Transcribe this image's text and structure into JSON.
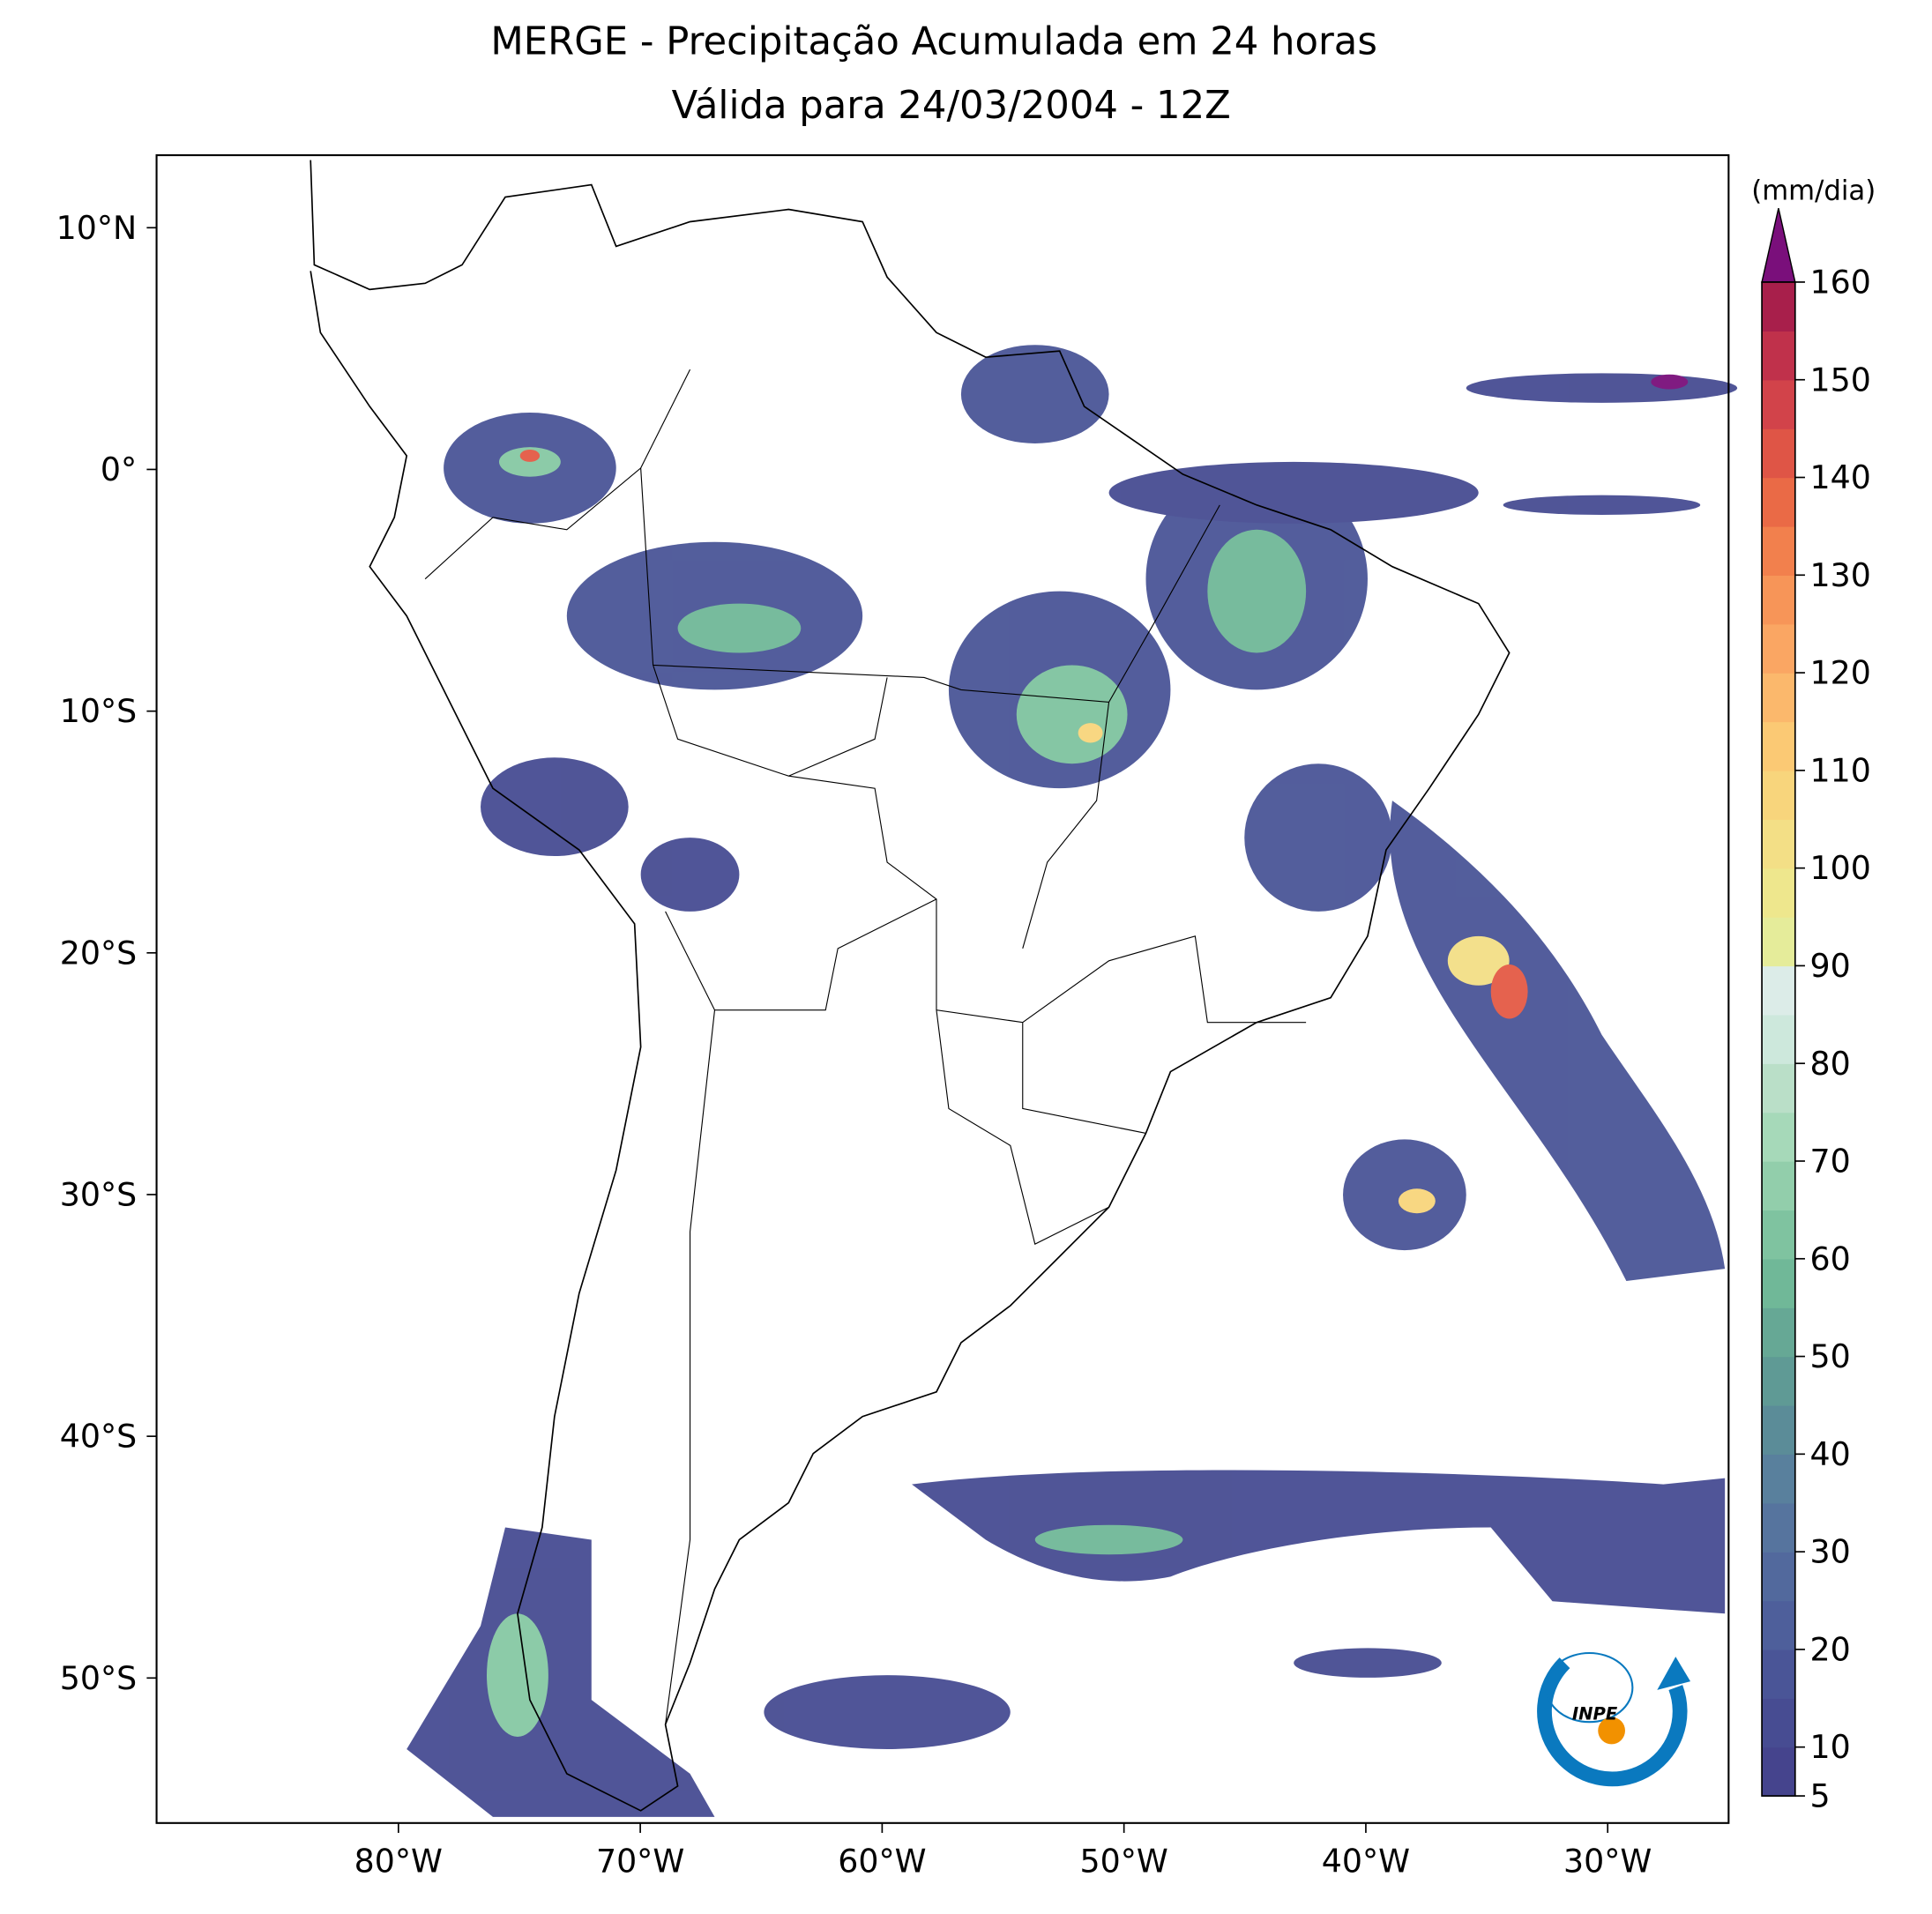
{
  "chart_data": {
    "type": "map",
    "title": [
      "MERGE - Precipitação Acumulada em 24 horas",
      "Válida para 24/03/2004 - 12Z"
    ],
    "xlim": [
      -90,
      -25
    ],
    "ylim": [
      -56,
      13
    ],
    "xticks": [
      {
        "value": -80,
        "label": "80°W"
      },
      {
        "value": -70,
        "label": "70°W"
      },
      {
        "value": -60,
        "label": "60°W"
      },
      {
        "value": -50,
        "label": "50°W"
      },
      {
        "value": -40,
        "label": "40°W"
      },
      {
        "value": -30,
        "label": "30°W"
      }
    ],
    "yticks": [
      {
        "value": 10,
        "label": "10°N"
      },
      {
        "value": 0,
        "label": "0°"
      },
      {
        "value": -10,
        "label": "10°S"
      },
      {
        "value": -20,
        "label": "20°S"
      },
      {
        "value": -30,
        "label": "30°S"
      },
      {
        "value": -40,
        "label": "40°S"
      },
      {
        "value": -50,
        "label": "50°S"
      }
    ],
    "colorbar": {
      "label": "(mm/dia)",
      "lim": [
        5,
        160
      ],
      "ticks": [
        5,
        10,
        20,
        30,
        40,
        50,
        60,
        70,
        80,
        90,
        100,
        110,
        120,
        130,
        140,
        150,
        160
      ],
      "colors": [
        "#45448d",
        "#474c92",
        "#4a5597",
        "#4e5f9b",
        "#52699d",
        "#56749e",
        "#59809d",
        "#5b8c98",
        "#5f9a95",
        "#66a895",
        "#70b898",
        "#7fc3a0",
        "#92ceab",
        "#a6d9b9",
        "#badfc8",
        "#cde8dc",
        "#dcece8",
        "#e5ec9a",
        "#eee78d",
        "#f3df86",
        "#f8d57c",
        "#fbc974",
        "#fbb86c",
        "#faa663",
        "#f79558",
        "#f2804d",
        "#ea6a46",
        "#df5546",
        "#d2434a",
        "#c0314b",
        "#a81f4b"
      ],
      "extend_color": "#7a0f7b"
    },
    "logo_text": "INPE"
  }
}
